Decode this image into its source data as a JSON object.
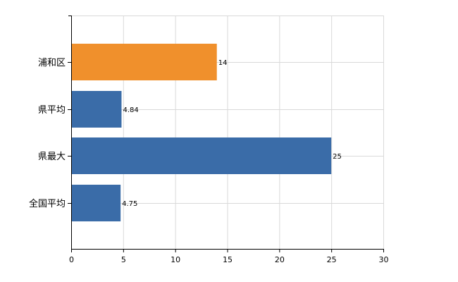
{
  "chart_data": {
    "type": "bar",
    "orientation": "horizontal",
    "categories": [
      "浦和区",
      "県平均",
      "県最大",
      "全国平均"
    ],
    "values": [
      14,
      4.84,
      25,
      4.75
    ],
    "value_labels": [
      "14",
      "4.84",
      "25",
      "4.75"
    ],
    "bar_colors": [
      "#f0902c",
      "#3a6ca8",
      "#3a6ca8",
      "#3a6ca8"
    ],
    "xlim": [
      0,
      30
    ],
    "xticks": [
      0,
      5,
      10,
      15,
      20,
      25,
      30
    ],
    "grid": true,
    "title": "",
    "xlabel": "",
    "ylabel": ""
  }
}
